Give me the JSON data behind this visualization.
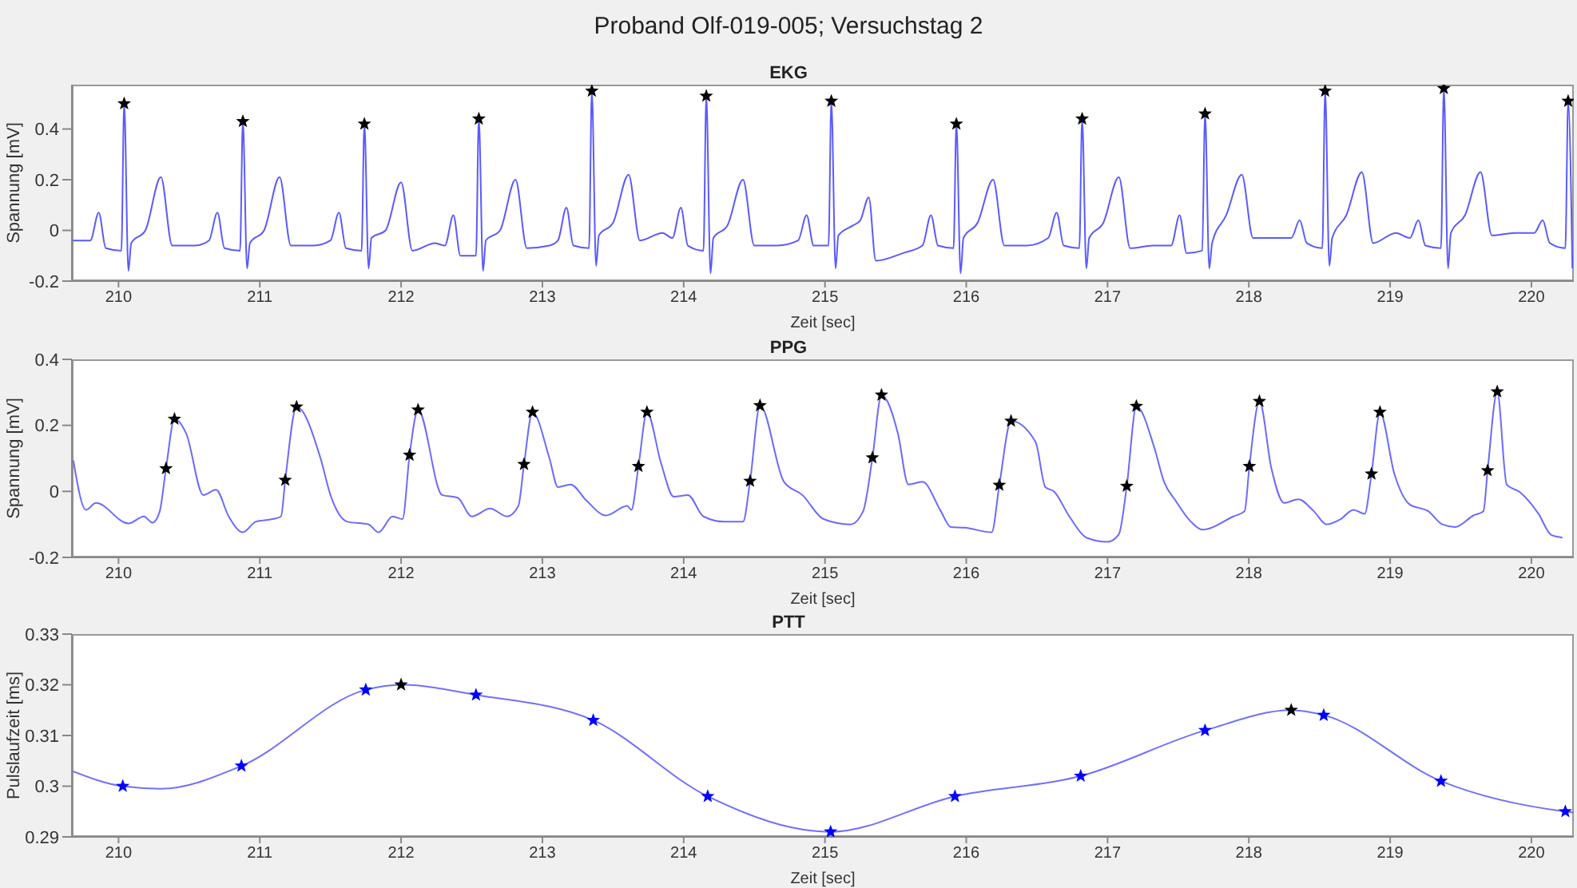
{
  "chart_data": [
    {
      "type": "line",
      "title": "Proband Olf-019-005; Versuchstag 2",
      "subtitle": "EKG",
      "xlabel": "Zeit [sec]",
      "ylabel": "Spannung [mV]",
      "xlim": [
        209.67,
        220.3
      ],
      "xticks": [
        210,
        211,
        212,
        213,
        214,
        215,
        216,
        217,
        218,
        219,
        220
      ],
      "ylim": [
        -0.2,
        0.575
      ],
      "yticks": [
        -0.2,
        0,
        0.2,
        0.4
      ],
      "series": [
        {
          "type": "line",
          "color": "#5a5aff",
          "marker": "none",
          "x": [
            209.67,
            209.8,
            209.86,
            209.91,
            210.02,
            210.04,
            210.07,
            210.09,
            210.19,
            210.3,
            210.38,
            210.54,
            210.64,
            210.7,
            210.75,
            210.86,
            210.88,
            210.91,
            210.93,
            211.03,
            211.14,
            211.22,
            211.38,
            211.5,
            211.56,
            211.61,
            211.72,
            211.74,
            211.77,
            211.79,
            211.89,
            212.0,
            212.08,
            212.24,
            212.31,
            212.37,
            212.42,
            212.53,
            212.55,
            212.58,
            212.6,
            212.7,
            212.81,
            212.89,
            213.05,
            213.11,
            213.17,
            213.22,
            213.33,
            213.35,
            213.38,
            213.4,
            213.5,
            213.61,
            213.69,
            213.85,
            213.92,
            213.98,
            214.03,
            214.14,
            214.16,
            214.19,
            214.21,
            214.31,
            214.42,
            214.5,
            214.66,
            214.81,
            214.87,
            214.92,
            215.025,
            215.045,
            215.075,
            215.095,
            215.2,
            215.25,
            215.31,
            215.36,
            215.55,
            215.69,
            215.75,
            215.8,
            215.91,
            215.93,
            215.96,
            215.98,
            216.08,
            216.19,
            216.27,
            216.43,
            216.58,
            216.64,
            216.69,
            216.8,
            216.82,
            216.85,
            216.87,
            216.97,
            217.08,
            217.16,
            217.32,
            217.45,
            217.51,
            217.56,
            217.67,
            217.69,
            217.72,
            217.74,
            217.84,
            217.95,
            218.03,
            218.19,
            218.3,
            218.36,
            218.41,
            218.52,
            218.54,
            218.57,
            218.59,
            218.69,
            218.8,
            218.88,
            219.04,
            219.14,
            219.2,
            219.25,
            219.36,
            219.38,
            219.41,
            219.43,
            219.53,
            219.64,
            219.72,
            219.88,
            220.02,
            220.08,
            220.13,
            220.24,
            220.26,
            220.29
          ],
          "values": [
            -0.04,
            -0.04,
            0.07,
            -0.07,
            -0.08,
            0.5,
            -0.16,
            -0.05,
            0.0,
            0.21,
            -0.06,
            -0.06,
            -0.04,
            0.07,
            -0.07,
            -0.08,
            0.43,
            -0.15,
            -0.05,
            0.0,
            0.21,
            -0.06,
            -0.06,
            -0.04,
            0.07,
            -0.07,
            -0.08,
            0.42,
            -0.15,
            -0.03,
            0.0,
            0.19,
            -0.08,
            -0.05,
            -0.06,
            0.06,
            -0.1,
            -0.1,
            0.44,
            -0.16,
            -0.04,
            0.0,
            0.2,
            -0.07,
            -0.06,
            -0.04,
            0.09,
            -0.06,
            -0.07,
            0.55,
            -0.14,
            -0.02,
            0.03,
            0.22,
            -0.04,
            -0.01,
            -0.03,
            0.09,
            -0.06,
            -0.08,
            0.53,
            -0.17,
            -0.03,
            0.02,
            0.2,
            -0.06,
            -0.06,
            -0.04,
            0.06,
            -0.06,
            -0.06,
            0.51,
            -0.15,
            -0.02,
            0.02,
            0.04,
            0.13,
            -0.12,
            -0.09,
            -0.06,
            0.06,
            -0.06,
            -0.07,
            0.42,
            -0.17,
            -0.03,
            0.03,
            0.2,
            -0.06,
            -0.06,
            -0.03,
            0.07,
            -0.06,
            -0.07,
            0.44,
            -0.15,
            -0.03,
            0.03,
            0.21,
            -0.07,
            -0.06,
            -0.06,
            0.06,
            -0.09,
            -0.08,
            0.46,
            -0.15,
            -0.05,
            0.06,
            0.22,
            -0.03,
            -0.03,
            -0.03,
            0.04,
            -0.05,
            -0.07,
            0.55,
            -0.14,
            -0.03,
            0.06,
            0.23,
            -0.05,
            -0.01,
            -0.03,
            0.04,
            -0.06,
            -0.07,
            0.56,
            -0.15,
            -0.01,
            0.06,
            0.23,
            -0.02,
            -0.01,
            -0.01,
            0.04,
            -0.05,
            -0.07,
            0.51,
            -0.15
          ]
        },
        {
          "type": "scatter",
          "color": "#000000",
          "marker": "star",
          "x": [
            210.04,
            210.88,
            211.74,
            212.55,
            213.35,
            214.16,
            215.045,
            215.93,
            216.82,
            217.69,
            218.54,
            219.38,
            220.26
          ],
          "values": [
            0.5,
            0.43,
            0.42,
            0.44,
            0.55,
            0.53,
            0.51,
            0.42,
            0.44,
            0.46,
            0.55,
            0.56,
            0.51
          ]
        }
      ]
    },
    {
      "type": "line",
      "title": "PPG",
      "xlabel": "Zeit [sec]",
      "ylabel": "Spannung [mV]",
      "xlim": [
        209.67,
        220.3
      ],
      "xticks": [
        210,
        211,
        212,
        213,
        214,
        215,
        216,
        217,
        218,
        219,
        220
      ],
      "ylim": [
        -0.2,
        0.4
      ],
      "yticks": [
        -0.2,
        0,
        0.2,
        0.4
      ],
      "series": [
        {
          "type": "line",
          "color": "#6a6aff",
          "marker": "none",
          "x": [
            209.68,
            209.77,
            209.84,
            210.07,
            210.18,
            210.24,
            210.29,
            210.336,
            210.396,
            210.48,
            210.6,
            210.69,
            210.78,
            210.88,
            210.97,
            211.09,
            211.15,
            211.18,
            211.26,
            211.43,
            211.5,
            211.62,
            211.77,
            211.84,
            211.94,
            212.01,
            212.06,
            212.12,
            212.29,
            212.4,
            212.5,
            212.63,
            212.75,
            212.83,
            212.87,
            212.93,
            213.05,
            213.11,
            213.2,
            213.31,
            213.45,
            213.6,
            213.63,
            213.68,
            213.74,
            213.84,
            213.93,
            214.03,
            214.14,
            214.29,
            214.42,
            214.47,
            214.54,
            214.71,
            214.84,
            214.99,
            215.18,
            215.27,
            215.336,
            215.4,
            215.517,
            215.59,
            215.69,
            215.82,
            215.89,
            215.99,
            216.18,
            216.234,
            216.317,
            216.49,
            216.56,
            216.62,
            216.73,
            216.85,
            217.0,
            217.08,
            217.136,
            217.204,
            217.33,
            217.4,
            217.48,
            217.59,
            217.67,
            217.89,
            217.97,
            218.004,
            218.075,
            218.16,
            218.25,
            218.35,
            218.46,
            218.55,
            218.65,
            218.74,
            218.82,
            218.868,
            218.928,
            219.03,
            219.14,
            219.27,
            219.37,
            219.46,
            219.59,
            219.66,
            219.69,
            219.758,
            219.825,
            219.92,
            220.05,
            220.14,
            220.22
          ],
          "values": [
            0.094,
            -0.056,
            -0.035,
            -0.097,
            -0.076,
            -0.095,
            -0.063,
            0.069,
            0.219,
            0.174,
            -0.011,
            0.005,
            -0.076,
            -0.124,
            -0.092,
            -0.084,
            -0.076,
            0.034,
            0.256,
            0.1,
            -0.011,
            -0.092,
            -0.1,
            -0.124,
            -0.076,
            -0.084,
            0.11,
            0.247,
            -0.011,
            -0.019,
            -0.076,
            -0.052,
            -0.076,
            -0.044,
            0.082,
            0.24,
            0.1,
            0.013,
            0.021,
            -0.027,
            -0.073,
            -0.044,
            -0.056,
            0.076,
            0.24,
            0.085,
            -0.016,
            -0.011,
            -0.076,
            -0.092,
            -0.092,
            0.031,
            0.26,
            0.029,
            -0.011,
            -0.084,
            -0.1,
            -0.06,
            0.102,
            0.292,
            0.174,
            0.021,
            0.029,
            -0.06,
            -0.108,
            -0.11,
            -0.124,
            0.019,
            0.213,
            0.15,
            0.013,
            0.0,
            -0.076,
            -0.14,
            -0.153,
            -0.13,
            0.016,
            0.258,
            0.134,
            0.029,
            -0.027,
            -0.092,
            -0.116,
            -0.076,
            -0.06,
            0.076,
            0.273,
            0.069,
            -0.035,
            -0.024,
            -0.06,
            -0.1,
            -0.084,
            -0.056,
            -0.068,
            0.053,
            0.24,
            0.053,
            -0.04,
            -0.06,
            -0.1,
            -0.108,
            -0.073,
            -0.06,
            0.063,
            0.302,
            0.021,
            -0.003,
            -0.068,
            -0.132,
            -0.14
          ]
        },
        {
          "type": "scatter",
          "color": "#000000",
          "marker": "star",
          "x": [
            210.336,
            210.396,
            211.18,
            211.26,
            212.06,
            212.12,
            212.87,
            212.93,
            213.68,
            213.74,
            214.47,
            214.54,
            215.336,
            215.4,
            216.234,
            216.317,
            217.136,
            217.204,
            218.004,
            218.075,
            218.868,
            218.928,
            219.69,
            219.758
          ],
          "values": [
            0.069,
            0.219,
            0.034,
            0.256,
            0.11,
            0.247,
            0.082,
            0.24,
            0.076,
            0.24,
            0.031,
            0.26,
            0.102,
            0.292,
            0.019,
            0.213,
            0.016,
            0.258,
            0.076,
            0.273,
            0.053,
            0.24,
            0.063,
            0.302
          ]
        }
      ]
    },
    {
      "type": "line",
      "title": "PTT",
      "xlabel": "Zeit [sec]",
      "ylabel": "Pulslaufzeit [ms]",
      "xlim": [
        209.67,
        220.3
      ],
      "xticks": [
        210,
        211,
        212,
        213,
        214,
        215,
        216,
        217,
        218,
        219,
        220
      ],
      "ylim": [
        0.29,
        0.33
      ],
      "yticks": [
        0.29,
        0.3,
        0.31,
        0.32,
        0.33
      ],
      "series": [
        {
          "type": "line",
          "color": "#7070ff",
          "marker": "none",
          "x": [
            209.67,
            210.03,
            210.3,
            210.87,
            211.75,
            212.0,
            212.53,
            213.36,
            214.17,
            215.04,
            215.92,
            216.81,
            217.69,
            218.3,
            218.53,
            219.36,
            220.24,
            220.3
          ],
          "values": [
            0.303,
            0.3,
            0.2995,
            0.304,
            0.319,
            0.32,
            0.318,
            0.313,
            0.298,
            0.291,
            0.298,
            0.302,
            0.311,
            0.315,
            0.314,
            0.301,
            0.295,
            0.2948
          ]
        },
        {
          "type": "scatter",
          "color": "#0000ff",
          "marker": "star",
          "x": [
            210.03,
            210.87,
            211.75,
            212.53,
            213.36,
            214.17,
            215.04,
            215.92,
            216.81,
            217.69,
            218.53,
            219.36,
            220.24
          ],
          "values": [
            0.3,
            0.304,
            0.319,
            0.318,
            0.313,
            0.298,
            0.291,
            0.298,
            0.302,
            0.311,
            0.314,
            0.301,
            0.295
          ]
        },
        {
          "type": "scatter",
          "color": "#000000",
          "marker": "star",
          "x": [
            212.0,
            218.3
          ],
          "values": [
            0.32,
            0.315
          ]
        }
      ]
    }
  ]
}
